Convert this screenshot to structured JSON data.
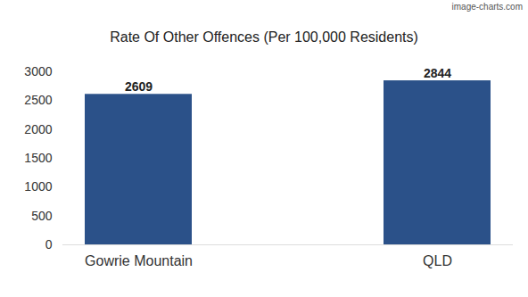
{
  "chart_data": {
    "type": "bar",
    "title": "Rate Of Other Offences (Per 100,000 Residents)",
    "annotation": "image-charts.com",
    "categories": [
      "Gowrie Mountain",
      "QLD"
    ],
    "values": [
      2609,
      2844
    ],
    "color": "#2b5189",
    "ylim": [
      0,
      3000
    ],
    "yticks": [
      0,
      500,
      1000,
      1500,
      2000,
      2500,
      3000
    ],
    "grid": false,
    "data_labels": true
  }
}
